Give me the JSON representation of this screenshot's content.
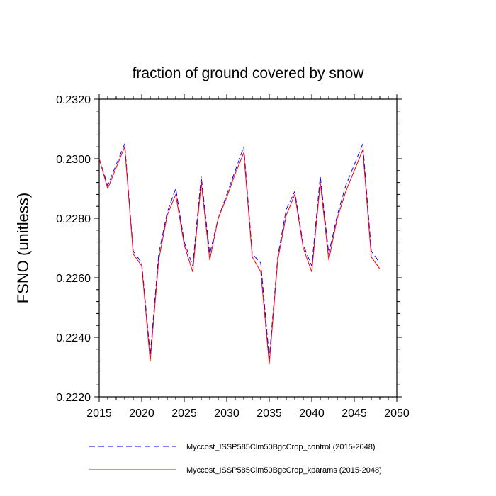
{
  "chart_data": {
    "type": "line",
    "title": "fraction of ground covered by snow",
    "xlabel": "",
    "ylabel": "FSNO  (unitless)",
    "xlim": [
      2015,
      2050
    ],
    "ylim": [
      0.222,
      0.232
    ],
    "xticks": [
      2015,
      2020,
      2025,
      2030,
      2035,
      2040,
      2045,
      2050
    ],
    "xtick_labels": [
      "2015",
      "2020",
      "2025",
      "2030",
      "2035",
      "2040",
      "2045",
      "2050"
    ],
    "yticks": [
      0.222,
      0.224,
      0.226,
      0.228,
      0.23,
      0.232
    ],
    "ytick_labels": [
      "0.2220",
      "0.2240",
      "0.2260",
      "0.2280",
      "0.2300",
      "0.2320"
    ],
    "x": [
      2015,
      2016,
      2017,
      2018,
      2019,
      2020,
      2021,
      2022,
      2023,
      2024,
      2025,
      2026,
      2027,
      2028,
      2029,
      2030,
      2031,
      2032,
      2033,
      2034,
      2035,
      2036,
      2037,
      2038,
      2039,
      2040,
      2041,
      2042,
      2043,
      2044,
      2045,
      2046,
      2047,
      2048
    ],
    "series": [
      {
        "name": "Myccost_ISSP585Clm50BgcCrop_control (2015-2048)",
        "color": "#0000ff",
        "style": "dashed",
        "values": [
          0.23,
          0.2291,
          0.2298,
          0.2305,
          0.2269,
          0.2265,
          0.2234,
          0.2268,
          0.2282,
          0.229,
          0.2272,
          0.2264,
          0.2294,
          0.2268,
          0.228,
          0.2288,
          0.2296,
          0.2304,
          0.2268,
          0.2265,
          0.2233,
          0.2267,
          0.2283,
          0.2289,
          0.2271,
          0.2264,
          0.2294,
          0.2268,
          0.2281,
          0.2291,
          0.2298,
          0.2305,
          0.2269,
          0.2265
        ]
      },
      {
        "name": "Myccost_ISSP585Clm50BgcCrop_kparams (2015-2048)",
        "color": "#ff0000",
        "style": "solid",
        "values": [
          0.23,
          0.229,
          0.2297,
          0.2304,
          0.2268,
          0.2264,
          0.2232,
          0.2266,
          0.2281,
          0.2288,
          0.2271,
          0.2262,
          0.2292,
          0.2266,
          0.228,
          0.2287,
          0.2295,
          0.2302,
          0.2267,
          0.2262,
          0.2231,
          0.2266,
          0.2281,
          0.2288,
          0.227,
          0.2262,
          0.2292,
          0.2266,
          0.228,
          0.2289,
          0.2296,
          0.2303,
          0.2267,
          0.2263
        ]
      }
    ]
  }
}
